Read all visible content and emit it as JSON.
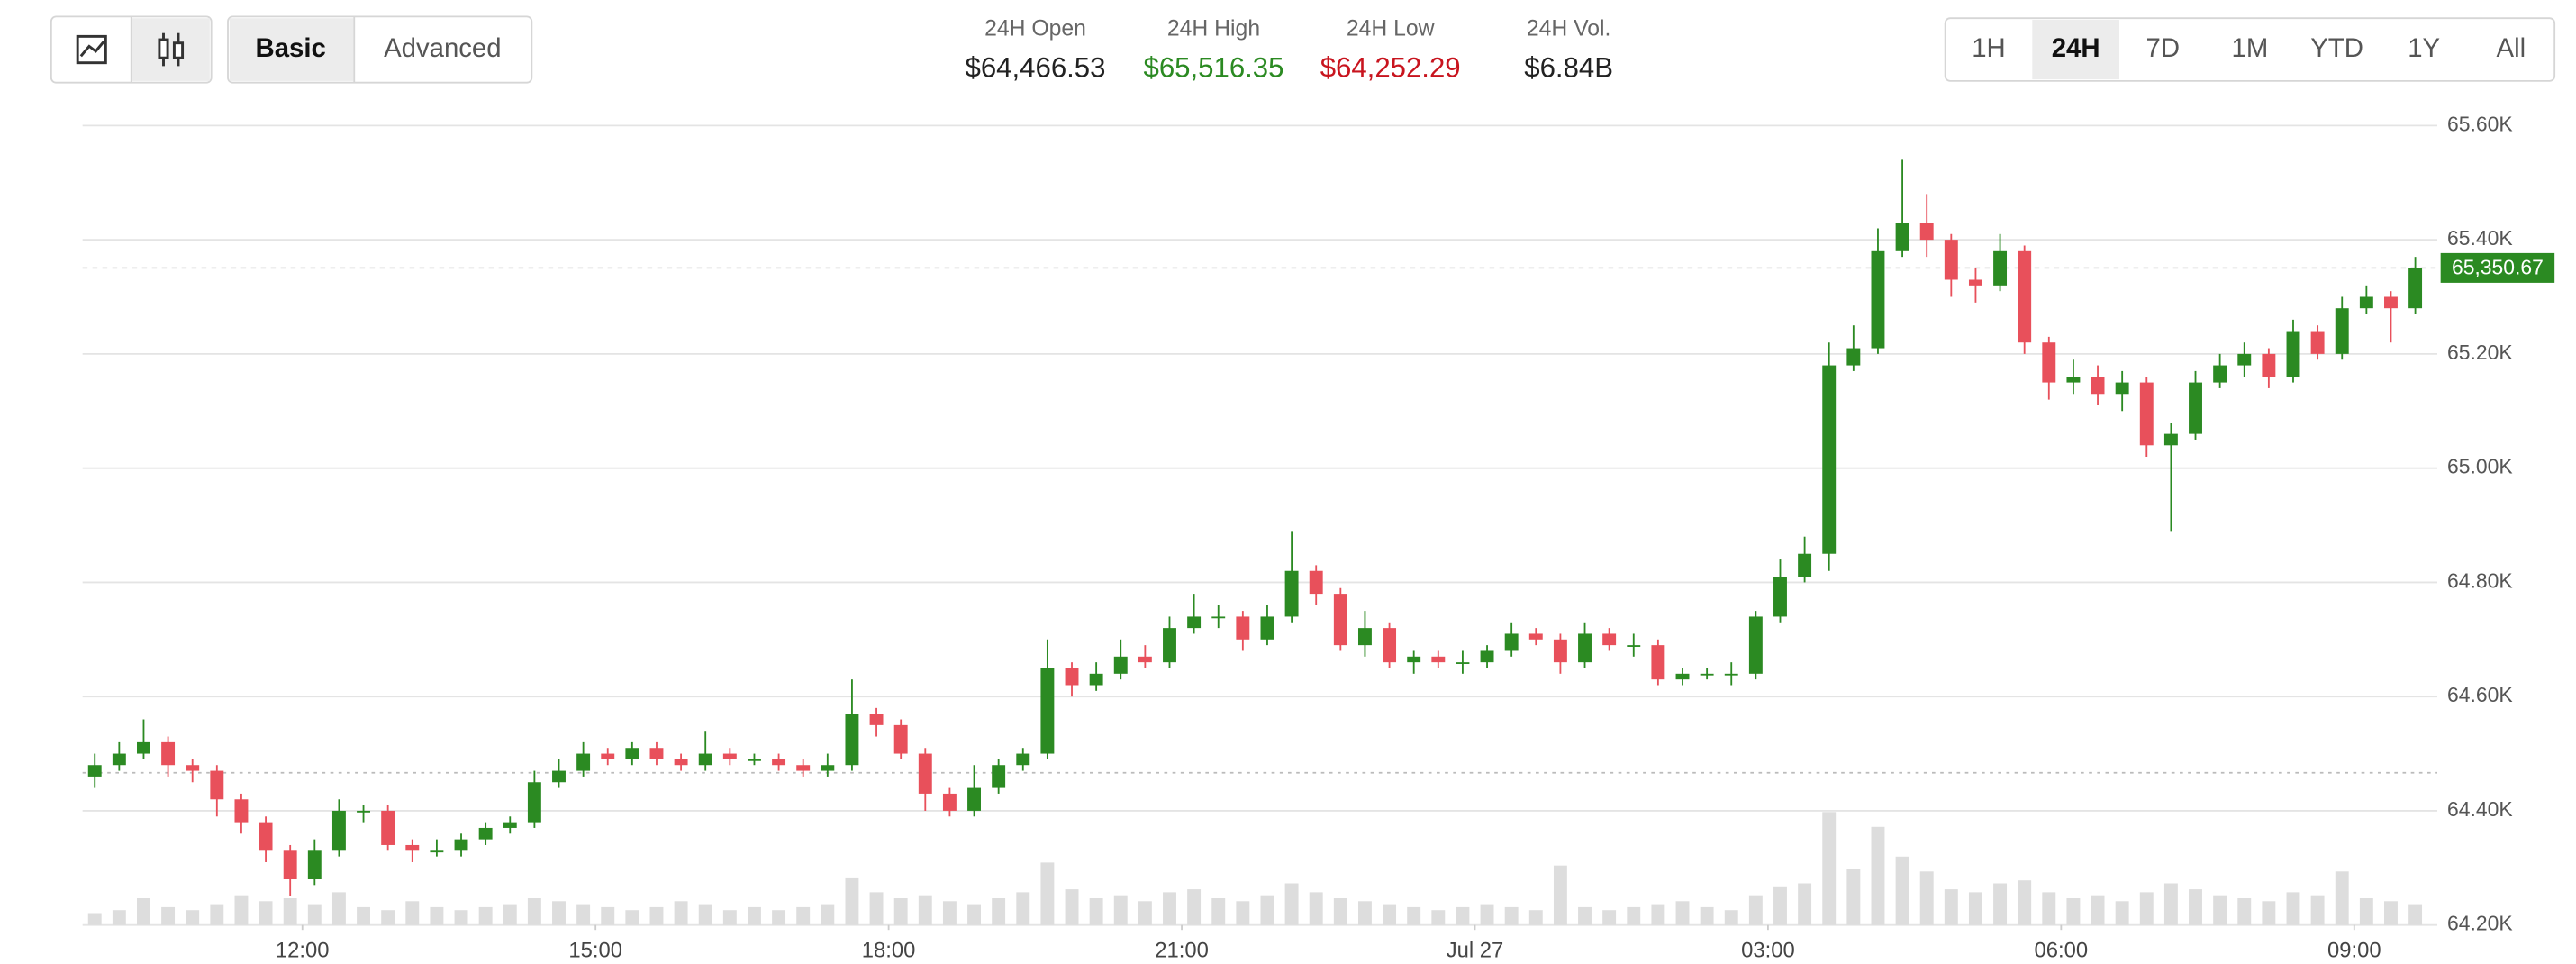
{
  "toolbar": {
    "modes": [
      "Basic",
      "Advanced"
    ],
    "active_mode_index": 0,
    "ranges": [
      "1H",
      "24H",
      "7D",
      "1M",
      "YTD",
      "1Y",
      "All"
    ],
    "active_range_index": 1
  },
  "stats": [
    {
      "label": "24H Open",
      "value": "$64,466.53",
      "color": "#222222"
    },
    {
      "label": "24H High",
      "value": "$65,516.35",
      "color": "#2b8a22"
    },
    {
      "label": "24H Low",
      "value": "$64,252.29",
      "color": "#c8141e"
    },
    {
      "label": "24H Vol.",
      "value": "$6.84B",
      "color": "#222222"
    }
  ],
  "chart_data": {
    "type": "candlestick",
    "up_color": "#2b8a22",
    "down_color": "#e8505b",
    "volume_color": "#dddddd",
    "xlim": [
      9.75,
      33.85
    ],
    "xticks": [
      {
        "value": 12,
        "label": "12:00"
      },
      {
        "value": 15,
        "label": "15:00"
      },
      {
        "value": 18,
        "label": "18:00"
      },
      {
        "value": 21,
        "label": "21:00"
      },
      {
        "value": 24,
        "label": "Jul 27"
      },
      {
        "value": 27,
        "label": "03:00"
      },
      {
        "value": 30,
        "label": "06:00"
      },
      {
        "value": 33,
        "label": "09:00"
      }
    ],
    "ylim": [
      64200,
      65600
    ],
    "yticks": [
      {
        "value": 64200,
        "label": "64.20K"
      },
      {
        "value": 64400,
        "label": "64.40K"
      },
      {
        "value": 64600,
        "label": "64.60K"
      },
      {
        "value": 64800,
        "label": "64.80K"
      },
      {
        "value": 65000,
        "label": "65.00K"
      },
      {
        "value": 65200,
        "label": "65.20K"
      },
      {
        "value": 65400,
        "label": "65.40K"
      },
      {
        "value": 65600,
        "label": "65.60K"
      }
    ],
    "grid": true,
    "open_line": 64466.53,
    "last_price": {
      "value": 65350.67,
      "label": "65,350.67"
    },
    "x": [
      9.75,
      10,
      10.25,
      10.5,
      10.75,
      11,
      11.25,
      11.5,
      11.75,
      12,
      12.25,
      12.5,
      12.75,
      13,
      13.25,
      13.5,
      13.75,
      14,
      14.25,
      14.5,
      14.75,
      15,
      15.25,
      15.5,
      15.75,
      16,
      16.25,
      16.5,
      16.75,
      17,
      17.25,
      17.5,
      17.75,
      18,
      18.25,
      18.5,
      18.75,
      19,
      19.25,
      19.5,
      19.75,
      20,
      20.25,
      20.5,
      20.75,
      21,
      21.25,
      21.5,
      21.75,
      22,
      22.25,
      22.5,
      22.75,
      23,
      23.25,
      23.5,
      23.75,
      24,
      24.25,
      24.5,
      24.75,
      25,
      25.25,
      25.5,
      25.75,
      26,
      26.25,
      26.5,
      26.75,
      27,
      27.25,
      27.5,
      27.75,
      28,
      28.25,
      28.5,
      28.75,
      29,
      29.25,
      29.5,
      29.75,
      30,
      30.25,
      30.5,
      30.75,
      31,
      31.25,
      31.5,
      31.75,
      32,
      32.25,
      32.5,
      32.75,
      33,
      33.25,
      33.5
    ],
    "open": [
      64460,
      64480,
      64500,
      64520,
      64480,
      64470,
      64420,
      64380,
      64330,
      64280,
      64330,
      64400,
      64400,
      64340,
      64330,
      64330,
      64350,
      64370,
      64380,
      64450,
      64470,
      64500,
      64490,
      64510,
      64490,
      64480,
      64500,
      64490,
      64490,
      64480,
      64470,
      64480,
      64570,
      64550,
      64500,
      64430,
      64400,
      64440,
      64480,
      64500,
      64650,
      64620,
      64640,
      64670,
      64660,
      64720,
      64740,
      64740,
      64700,
      64740,
      64820,
      64780,
      64690,
      64720,
      64660,
      64670,
      64660,
      64660,
      64680,
      64710,
      64700,
      64660,
      64710,
      64690,
      64690,
      64630,
      64640,
      64640,
      64640,
      64740,
      64810,
      64850,
      65180,
      65210,
      65380,
      65430,
      65400,
      65330,
      65320,
      65380,
      65220,
      65150,
      65160,
      65130,
      65150,
      65040,
      65060,
      65150,
      65180,
      65200,
      65160,
      65240,
      65200,
      65280,
      65300,
      65280
    ],
    "high": [
      64500,
      64520,
      64560,
      64530,
      64490,
      64480,
      64430,
      64390,
      64340,
      64350,
      64420,
      64410,
      64410,
      64350,
      64350,
      64360,
      64380,
      64390,
      64470,
      64490,
      64520,
      64510,
      64520,
      64520,
      64500,
      64540,
      64510,
      64500,
      64500,
      64490,
      64500,
      64630,
      64580,
      64560,
      64510,
      64440,
      64480,
      64490,
      64510,
      64700,
      64660,
      64660,
      64700,
      64690,
      64740,
      64780,
      64760,
      64750,
      64760,
      64890,
      64830,
      64790,
      64750,
      64730,
      64680,
      64680,
      64680,
      64690,
      64730,
      64720,
      64710,
      64730,
      64720,
      64710,
      64700,
      64650,
      64650,
      64660,
      64750,
      64840,
      64880,
      65220,
      65250,
      65420,
      65540,
      65480,
      65410,
      65350,
      65410,
      65390,
      65230,
      65190,
      65180,
      65170,
      65160,
      65080,
      65170,
      65200,
      65220,
      65210,
      65260,
      65250,
      65300,
      65320,
      65310,
      65370
    ],
    "low": [
      64440,
      64470,
      64490,
      64460,
      64450,
      64390,
      64360,
      64310,
      64250,
      64270,
      64320,
      64380,
      64330,
      64310,
      64320,
      64320,
      64340,
      64360,
      64370,
      64440,
      64460,
      64480,
      64480,
      64480,
      64470,
      64470,
      64480,
      64480,
      64470,
      64460,
      64460,
      64470,
      64530,
      64490,
      64400,
      64390,
      64390,
      64430,
      64470,
      64490,
      64600,
      64610,
      64630,
      64650,
      64650,
      64710,
      64720,
      64680,
      64690,
      64730,
      64760,
      64680,
      64670,
      64650,
      64640,
      64650,
      64640,
      64650,
      64670,
      64690,
      64640,
      64650,
      64680,
      64670,
      64620,
      64620,
      64630,
      64620,
      64630,
      64730,
      64800,
      64820,
      65170,
      65200,
      65370,
      65370,
      65300,
      65290,
      65310,
      65200,
      65120,
      65130,
      65110,
      65100,
      65020,
      64890,
      65050,
      65140,
      65160,
      65140,
      65150,
      65190,
      65190,
      65270,
      65220,
      65270
    ],
    "close": [
      64480,
      64500,
      64520,
      64480,
      64470,
      64420,
      64380,
      64330,
      64280,
      64330,
      64400,
      64400,
      64340,
      64330,
      64330,
      64350,
      64370,
      64380,
      64450,
      64470,
      64500,
      64490,
      64510,
      64490,
      64480,
      64500,
      64490,
      64490,
      64480,
      64470,
      64480,
      64570,
      64550,
      64500,
      64430,
      64400,
      64440,
      64480,
      64500,
      64650,
      64620,
      64640,
      64670,
      64660,
      64720,
      64740,
      64740,
      64700,
      64740,
      64820,
      64780,
      64690,
      64720,
      64660,
      64670,
      64660,
      64660,
      64680,
      64710,
      64700,
      64660,
      64710,
      64690,
      64690,
      64630,
      64640,
      64640,
      64640,
      64740,
      64810,
      64850,
      65180,
      65210,
      65380,
      65430,
      65400,
      65330,
      65320,
      65380,
      65220,
      65150,
      65160,
      65130,
      65150,
      65040,
      65060,
      65150,
      65180,
      65200,
      65160,
      65240,
      65200,
      65280,
      65300,
      65280,
      65350.67
    ],
    "volume": [
      8,
      10,
      18,
      12,
      10,
      14,
      20,
      16,
      18,
      14,
      22,
      12,
      10,
      16,
      12,
      10,
      12,
      14,
      18,
      16,
      14,
      12,
      10,
      12,
      16,
      14,
      10,
      12,
      10,
      12,
      14,
      32,
      22,
      18,
      20,
      16,
      14,
      18,
      22,
      42,
      24,
      18,
      20,
      16,
      22,
      24,
      18,
      16,
      20,
      28,
      22,
      18,
      16,
      14,
      12,
      10,
      12,
      14,
      12,
      10,
      40,
      12,
      10,
      12,
      14,
      16,
      12,
      10,
      20,
      26,
      28,
      76,
      38,
      66,
      46,
      36,
      24,
      22,
      28,
      30,
      22,
      18,
      20,
      16,
      22,
      28,
      24,
      20,
      18,
      16,
      22,
      20,
      36,
      18,
      16,
      14
    ]
  }
}
